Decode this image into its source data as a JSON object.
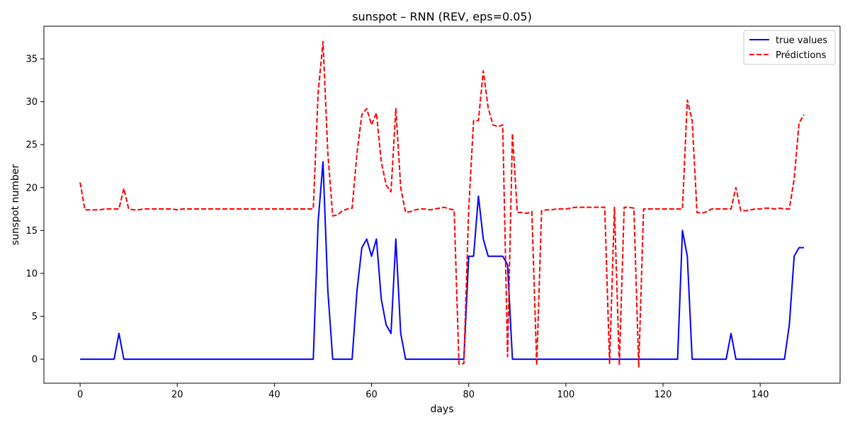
{
  "chart_data": {
    "type": "line",
    "title": "sunspot – RNN (REV, eps=0.05)",
    "xlabel": "days",
    "ylabel": "sunspot number",
    "xlim": [
      -7.45,
      156.45
    ],
    "ylim": [
      -2.8,
      38.8
    ],
    "xticks": [
      0,
      20,
      40,
      60,
      80,
      100,
      120,
      140
    ],
    "yticks": [
      0,
      5,
      10,
      15,
      20,
      25,
      30,
      35
    ],
    "grid": false,
    "legend_position": "top-right",
    "series": [
      {
        "name": "true values",
        "color": "#0000ff",
        "dash": "solid",
        "values": [
          0,
          0,
          0,
          0,
          0,
          0,
          0,
          0,
          3,
          0,
          0,
          0,
          0,
          0,
          0,
          0,
          0,
          0,
          0,
          0,
          0,
          0,
          0,
          0,
          0,
          0,
          0,
          0,
          0,
          0,
          0,
          0,
          0,
          0,
          0,
          0,
          0,
          0,
          0,
          0,
          0,
          0,
          0,
          0,
          0,
          0,
          0,
          0,
          0,
          16,
          23,
          8,
          0,
          0,
          0,
          0,
          0,
          8,
          13,
          14,
          12,
          14,
          7,
          4,
          3,
          14,
          3,
          0,
          0,
          0,
          0,
          0,
          0,
          0,
          0,
          0,
          0,
          0,
          0,
          0,
          12,
          12,
          19,
          14,
          12,
          12,
          12,
          12,
          11,
          0,
          0,
          0,
          0,
          0,
          0,
          0,
          0,
          0,
          0,
          0,
          0,
          0,
          0,
          0,
          0,
          0,
          0,
          0,
          0,
          0,
          0,
          0,
          0,
          0,
          0,
          0,
          0,
          0,
          0,
          0,
          0,
          0,
          0,
          0,
          15,
          12,
          0,
          0,
          0,
          0,
          0,
          0,
          0,
          0,
          3,
          0,
          0,
          0,
          0,
          0,
          0,
          0,
          0,
          0,
          0,
          0,
          4,
          12,
          13,
          13
        ]
      },
      {
        "name": "Prédictions",
        "color": "#ff0000",
        "dash": "dashed",
        "values": [
          20.6,
          17.4,
          17.4,
          17.4,
          17.4,
          17.5,
          17.5,
          17.5,
          17.5,
          19.9,
          17.5,
          17.4,
          17.4,
          17.5,
          17.5,
          17.5,
          17.5,
          17.5,
          17.5,
          17.5,
          17.4,
          17.5,
          17.5,
          17.5,
          17.5,
          17.5,
          17.5,
          17.5,
          17.5,
          17.5,
          17.5,
          17.5,
          17.5,
          17.5,
          17.5,
          17.5,
          17.5,
          17.5,
          17.5,
          17.5,
          17.5,
          17.5,
          17.5,
          17.5,
          17.5,
          17.5,
          17.5,
          17.5,
          17.5,
          31.0,
          37.0,
          24.0,
          16.7,
          16.8,
          17.3,
          17.5,
          17.6,
          24.0,
          28.5,
          29.2,
          27.3,
          28.7,
          23.0,
          20.3,
          19.5,
          29.2,
          20.0,
          17.1,
          17.2,
          17.4,
          17.5,
          17.5,
          17.4,
          17.5,
          17.6,
          17.7,
          17.5,
          17.4,
          -0.6,
          -0.5,
          17.5,
          27.8,
          27.8,
          33.6,
          29.3,
          27.3,
          27.1,
          27.3,
          0.3,
          26.3,
          17.1,
          17.1,
          17.0,
          17.2,
          -0.7,
          17.3,
          17.4,
          17.4,
          17.5,
          17.5,
          17.5,
          17.6,
          17.7,
          17.7,
          17.7,
          17.7,
          17.7,
          17.7,
          17.7,
          -0.5,
          17.7,
          -0.7,
          17.7,
          17.7,
          17.6,
          -0.9,
          17.5,
          17.5,
          17.5,
          17.5,
          17.5,
          17.5,
          17.5,
          17.5,
          17.5,
          30.2,
          27.8,
          17.1,
          17.0,
          17.2,
          17.5,
          17.5,
          17.5,
          17.5,
          17.5,
          20.0,
          17.3,
          17.3,
          17.4,
          17.5,
          17.5,
          17.6,
          17.6,
          17.5,
          17.6,
          17.5,
          17.5,
          21.0,
          27.5,
          28.5
        ]
      }
    ]
  }
}
